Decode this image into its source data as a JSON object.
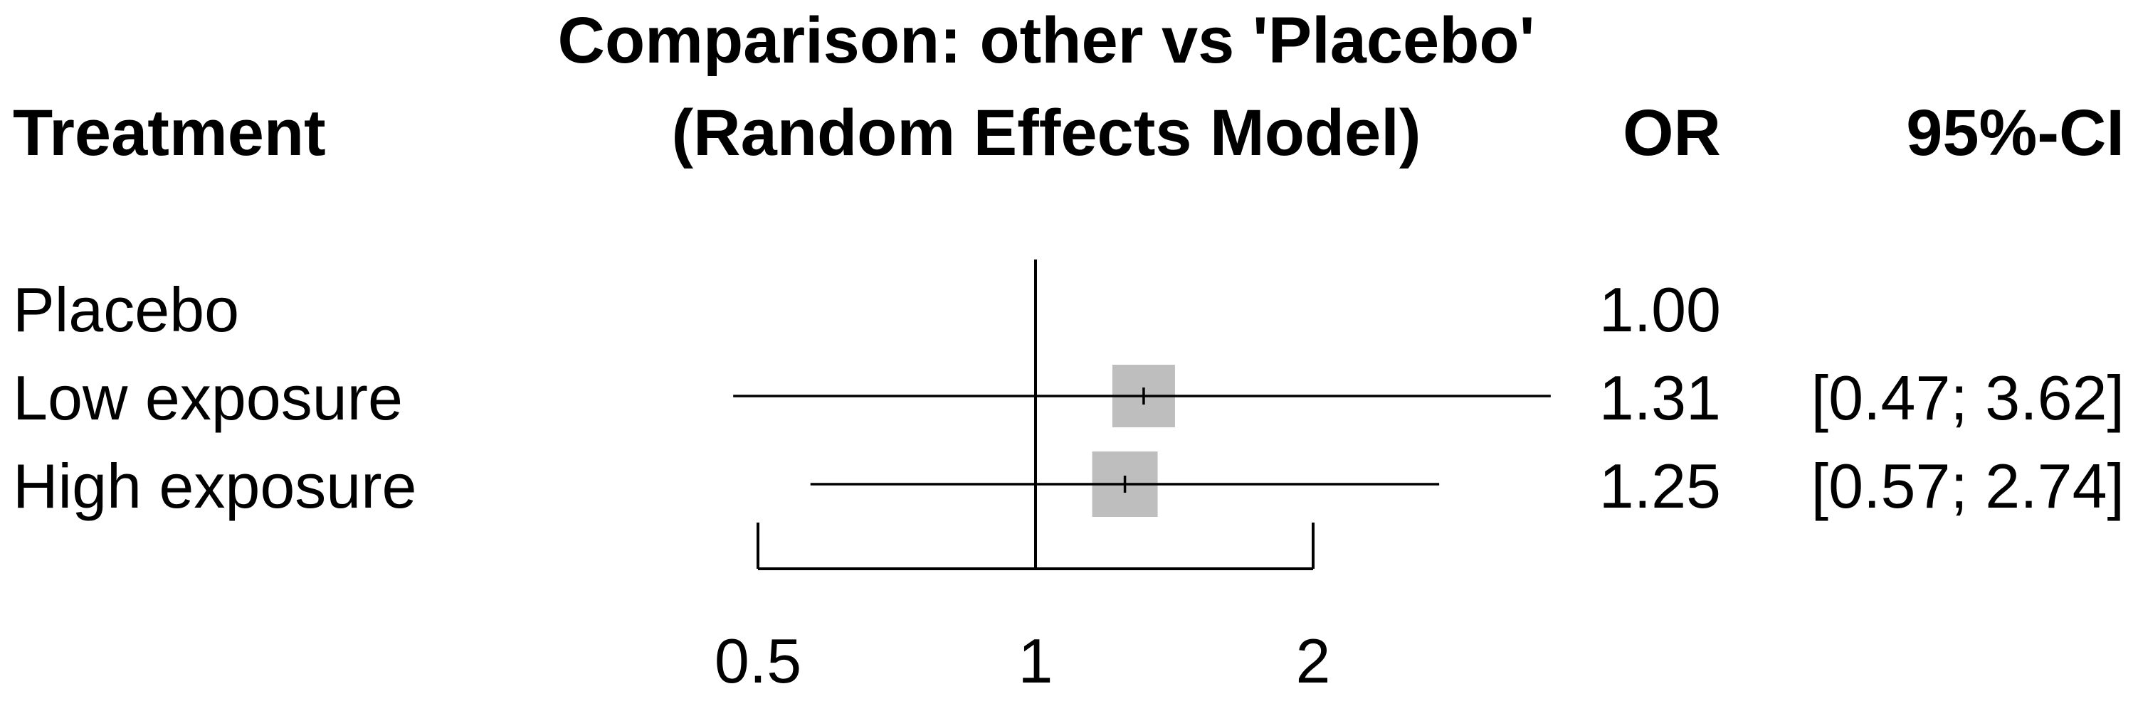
{
  "chart_data": {
    "type": "forest",
    "title": "Comparison: other vs 'Placebo'",
    "subtitle": "(Random Effects Model)",
    "columns": {
      "treatment": "Treatment",
      "estimate": "OR",
      "ci": "95%-CI"
    },
    "x_scale": "log",
    "x_ticks": [
      0.5,
      1,
      2
    ],
    "x_tick_labels": [
      "0.5",
      "1",
      "2"
    ],
    "xlim": [
      0.5,
      2
    ],
    "reference_value": 1,
    "rows": [
      {
        "treatment": "Placebo",
        "or": 1.0,
        "or_label": "1.00",
        "lower": null,
        "upper": null,
        "ci_label": ""
      },
      {
        "treatment": "Low exposure",
        "or": 1.31,
        "or_label": "1.31",
        "lower": 0.47,
        "upper": 3.62,
        "ci_label": "[0.47; 3.62]"
      },
      {
        "treatment": "High exposure",
        "or": 1.25,
        "or_label": "1.25",
        "lower": 0.57,
        "upper": 2.74,
        "ci_label": "[0.57; 2.74]"
      }
    ],
    "colors": {
      "square": "#bebebe",
      "lines": "#000000"
    }
  }
}
